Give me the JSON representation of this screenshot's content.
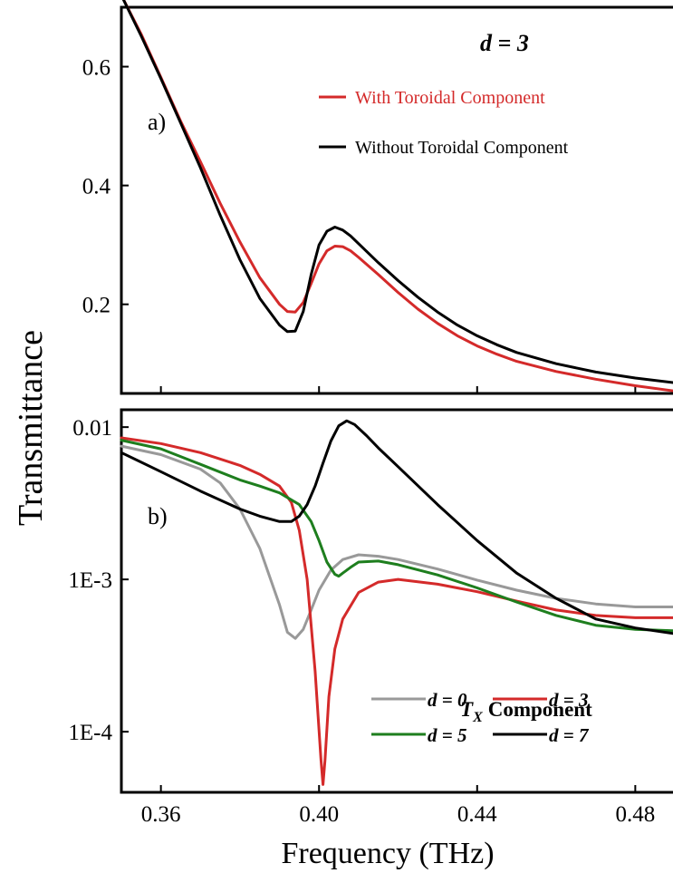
{
  "chart_data": [
    {
      "type": "line",
      "panel_label": "a)",
      "annotation": "d = 3",
      "xlim": [
        0.35,
        0.49
      ],
      "ylim": [
        0.05,
        0.7
      ],
      "yscale": "linear",
      "yticks": [
        "0.6",
        "0.4",
        "0.2"
      ],
      "ytick_values": [
        0.6,
        0.4,
        0.2
      ],
      "xticks_values": [
        0.36,
        0.4,
        0.44,
        0.48
      ],
      "legend": "top-right",
      "series": [
        {
          "name": "With Toroidal Component",
          "color": "#d42a2a",
          "x": [
            0.35,
            0.355,
            0.36,
            0.365,
            0.37,
            0.375,
            0.38,
            0.385,
            0.39,
            0.392,
            0.394,
            0.396,
            0.398,
            0.4,
            0.402,
            0.404,
            0.406,
            0.408,
            0.41,
            0.415,
            0.42,
            0.425,
            0.43,
            0.435,
            0.44,
            0.445,
            0.45,
            0.46,
            0.47,
            0.48,
            0.49
          ],
          "y": [
            0.72,
            0.655,
            0.582,
            0.508,
            0.44,
            0.37,
            0.305,
            0.245,
            0.2,
            0.188,
            0.187,
            0.203,
            0.235,
            0.268,
            0.29,
            0.298,
            0.297,
            0.29,
            0.279,
            0.25,
            0.22,
            0.192,
            0.168,
            0.147,
            0.13,
            0.116,
            0.104,
            0.087,
            0.074,
            0.063,
            0.054
          ]
        },
        {
          "name": "Without Toroidal Component",
          "color": "#000000",
          "x": [
            0.35,
            0.355,
            0.36,
            0.365,
            0.37,
            0.375,
            0.38,
            0.385,
            0.39,
            0.392,
            0.394,
            0.396,
            0.398,
            0.4,
            0.402,
            0.404,
            0.406,
            0.408,
            0.41,
            0.415,
            0.42,
            0.425,
            0.43,
            0.435,
            0.44,
            0.445,
            0.45,
            0.46,
            0.47,
            0.48,
            0.49
          ],
          "y": [
            0.72,
            0.652,
            0.58,
            0.505,
            0.43,
            0.35,
            0.275,
            0.21,
            0.165,
            0.154,
            0.155,
            0.188,
            0.25,
            0.3,
            0.323,
            0.33,
            0.325,
            0.315,
            0.302,
            0.27,
            0.24,
            0.212,
            0.187,
            0.165,
            0.147,
            0.132,
            0.119,
            0.1,
            0.086,
            0.076,
            0.068
          ]
        }
      ]
    },
    {
      "type": "line",
      "panel_label": "b)",
      "xlim": [
        0.35,
        0.49
      ],
      "ylim": [
        4e-05,
        0.013
      ],
      "yscale": "log",
      "yticks": [
        "0.01",
        "1E-3",
        "1E-4"
      ],
      "ytick_values": [
        0.01,
        0.001,
        0.0001
      ],
      "xticks": [
        "0.36",
        "0.40",
        "0.44",
        "0.48"
      ],
      "xticks_values": [
        0.36,
        0.4,
        0.44,
        0.48
      ],
      "xlabel": "Frequency (THz)",
      "ylabel": "Transmittance",
      "legend": "bottom-right",
      "legend_title": "Component",
      "legend_title_symbol": "T",
      "legend_title_sub": "X",
      "series": [
        {
          "name": "d = 0",
          "color": "#999999",
          "x": [
            0.35,
            0.36,
            0.37,
            0.375,
            0.38,
            0.385,
            0.39,
            0.392,
            0.394,
            0.396,
            0.398,
            0.4,
            0.403,
            0.406,
            0.41,
            0.415,
            0.42,
            0.43,
            0.44,
            0.45,
            0.46,
            0.47,
            0.48,
            0.49
          ],
          "y": [
            0.0075,
            0.0066,
            0.0053,
            0.0043,
            0.0029,
            0.0016,
            0.00068,
            0.00045,
            0.00041,
            0.00047,
            0.00063,
            0.00085,
            0.00115,
            0.00135,
            0.00145,
            0.00142,
            0.00135,
            0.00117,
            0.00099,
            0.00085,
            0.00075,
            0.00069,
            0.00066,
            0.00066
          ]
        },
        {
          "name": "d = 3",
          "color": "#d42a2a",
          "x": [
            0.35,
            0.36,
            0.37,
            0.38,
            0.385,
            0.39,
            0.393,
            0.395,
            0.397,
            0.399,
            0.4005,
            0.401,
            0.4015,
            0.4025,
            0.404,
            0.406,
            0.41,
            0.415,
            0.42,
            0.43,
            0.44,
            0.45,
            0.46,
            0.47,
            0.48,
            0.49
          ],
          "y": [
            0.0085,
            0.0078,
            0.0068,
            0.0056,
            0.0049,
            0.0041,
            0.0032,
            0.0021,
            0.001,
            0.00025,
            6.5e-05,
            4.5e-05,
            6.5e-05,
            0.00017,
            0.00035,
            0.00055,
            0.00082,
            0.00096,
            0.001,
            0.00093,
            0.00083,
            0.00072,
            0.00063,
            0.00058,
            0.00056,
            0.00056
          ]
        },
        {
          "name": "d = 5",
          "color": "#1e7e1e",
          "x": [
            0.35,
            0.36,
            0.37,
            0.38,
            0.385,
            0.39,
            0.395,
            0.398,
            0.4,
            0.402,
            0.404,
            0.405,
            0.406,
            0.408,
            0.41,
            0.415,
            0.42,
            0.43,
            0.44,
            0.45,
            0.46,
            0.47,
            0.48,
            0.49
          ],
          "y": [
            0.0082,
            0.0072,
            0.0057,
            0.0045,
            0.0041,
            0.0037,
            0.0031,
            0.0024,
            0.0018,
            0.0013,
            0.00108,
            0.00105,
            0.0011,
            0.0012,
            0.0013,
            0.00132,
            0.00125,
            0.00107,
            0.00088,
            0.00071,
            0.00058,
            0.0005,
            0.00047,
            0.00046
          ]
        },
        {
          "name": "d = 7",
          "color": "#000000",
          "x": [
            0.35,
            0.36,
            0.37,
            0.38,
            0.385,
            0.39,
            0.393,
            0.395,
            0.397,
            0.399,
            0.401,
            0.403,
            0.405,
            0.407,
            0.409,
            0.412,
            0.415,
            0.42,
            0.43,
            0.44,
            0.45,
            0.46,
            0.47,
            0.48,
            0.49
          ],
          "y": [
            0.0068,
            0.0051,
            0.0038,
            0.0029,
            0.0026,
            0.0024,
            0.0024,
            0.0026,
            0.0031,
            0.0041,
            0.0058,
            0.0081,
            0.0102,
            0.011,
            0.0104,
            0.0088,
            0.0073,
            0.0055,
            0.0031,
            0.0018,
            0.0011,
            0.00075,
            0.00055,
            0.00048,
            0.00044
          ]
        }
      ]
    }
  ]
}
